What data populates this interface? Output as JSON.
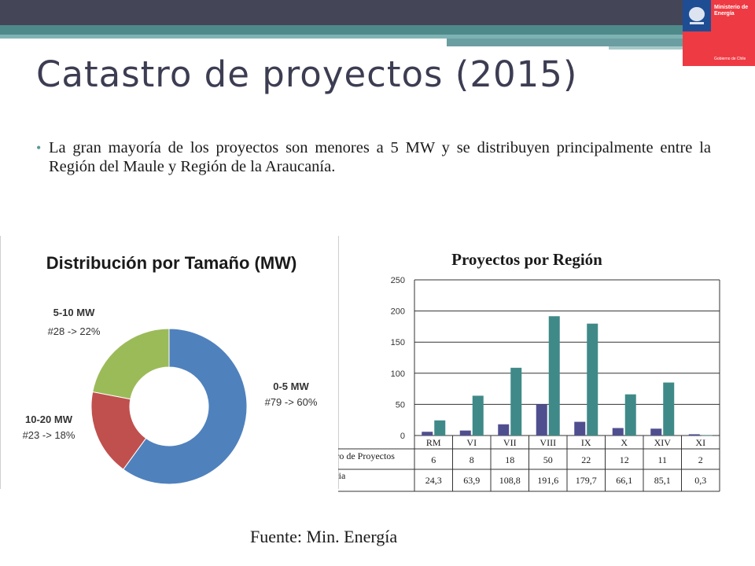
{
  "slide": {
    "title": "Catastro de proyectos (2015)",
    "bullet": "La gran mayoría de los proyectos son menores a 5 MW y se distribuyen principalmente entre la Región del Maule y Región de la Araucanía.",
    "source": "Fuente: Min. Energía",
    "logo": {
      "line1": "Ministerio de",
      "line2": "Energía",
      "footer": "Gobierno de Chile"
    }
  },
  "chart_data": [
    {
      "type": "pie",
      "title": "Distribución por Tamaño (MW)",
      "slices": [
        {
          "label": "0-5 MW",
          "detail": "#79 -> 60%",
          "count": 79,
          "percent": 60,
          "color": "#4f81bd"
        },
        {
          "label": "10-20 MW",
          "detail": "#23 -> 18%",
          "count": 23,
          "percent": 18,
          "color": "#c0504d"
        },
        {
          "label": "5-10 MW",
          "detail": "#28 -> 22%",
          "count": 28,
          "percent": 22,
          "color": "#9bbb59"
        }
      ]
    },
    {
      "type": "bar",
      "title": "Proyectos por Región",
      "categories": [
        "RM",
        "VI",
        "VII",
        "VIII",
        "IX",
        "X",
        "XIV",
        "XI"
      ],
      "ylim": [
        0,
        250
      ],
      "yticks": [
        0,
        50,
        100,
        150,
        200,
        250
      ],
      "series": [
        {
          "name": "Número de Proyectos",
          "color": "#4f4f8f",
          "values": [
            6,
            8,
            18,
            50,
            22,
            12,
            11,
            2
          ],
          "labels": [
            "6",
            "8",
            "18",
            "50",
            "22",
            "12",
            "11",
            "2"
          ]
        },
        {
          "name": "Potencia MW",
          "color": "#3f8a88",
          "values": [
            24.3,
            63.9,
            108.8,
            191.6,
            179.7,
            66.1,
            85.1,
            0.3
          ],
          "labels": [
            "24,3",
            "63,9",
            "108,8",
            "191,6",
            "179,7",
            "66,1",
            "85,1",
            "0,3"
          ]
        }
      ]
    }
  ]
}
